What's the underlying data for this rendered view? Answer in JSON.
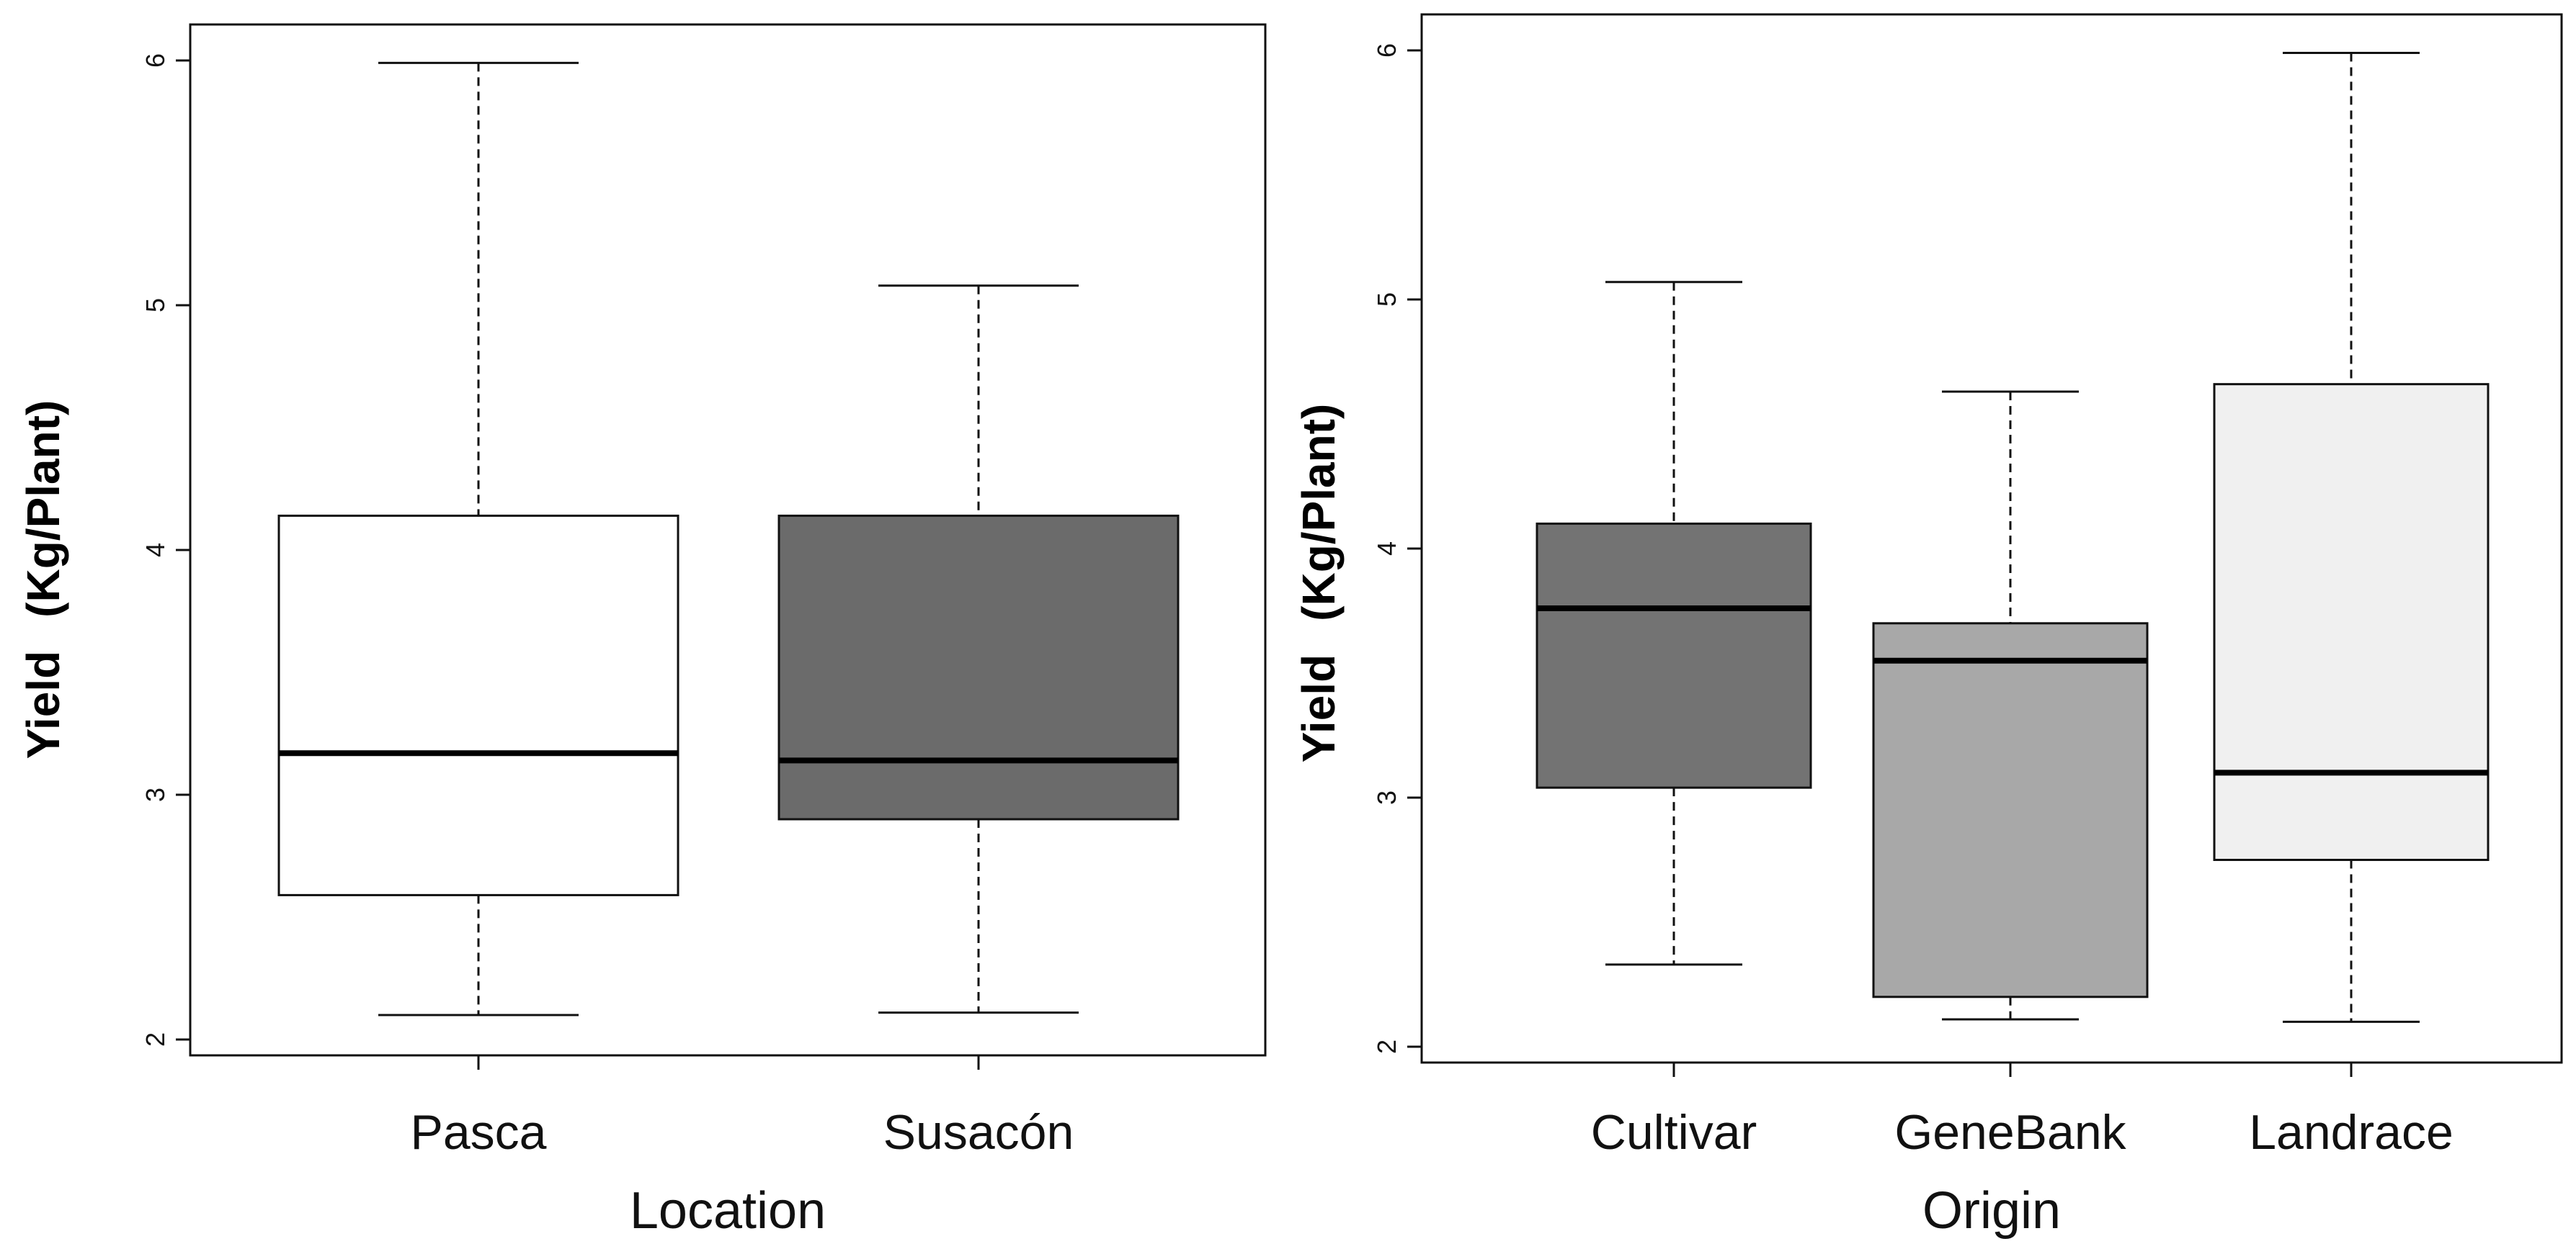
{
  "chart_data": [
    {
      "type": "box",
      "title": "",
      "xlabel": "Location",
      "ylabel": {
        "word": "Yield",
        "unit": "(Kg/Plant)"
      },
      "ylim": [
        2,
        6
      ],
      "yticks": [
        2,
        3,
        4,
        5,
        6
      ],
      "yticklabels": [
        "2",
        "3",
        "4",
        "5",
        "6"
      ],
      "grid": false,
      "categories": [
        "Pasca",
        "Susacón"
      ],
      "boxes": [
        {
          "name": "Pasca",
          "whisker_low": 2.1,
          "q1": 2.59,
          "median": 3.17,
          "q3": 4.14,
          "whisker_high": 5.99,
          "fill": "#ffffff"
        },
        {
          "name": "Susacón",
          "whisker_low": 2.11,
          "q1": 2.9,
          "median": 3.14,
          "q3": 4.14,
          "whisker_high": 5.08,
          "fill": "#6b6b6b"
        }
      ]
    },
    {
      "type": "box",
      "title": "",
      "xlabel": "Origin",
      "ylabel": {
        "word": "Yield",
        "unit": "(Kg/Plant)"
      },
      "ylim": [
        2,
        6
      ],
      "yticks": [
        2,
        3,
        4,
        5,
        6
      ],
      "yticklabels": [
        "2",
        "3",
        "4",
        "5",
        "6"
      ],
      "grid": false,
      "categories": [
        "Cultivar",
        "GeneBank",
        "Landrace"
      ],
      "boxes": [
        {
          "name": "Cultivar",
          "whisker_low": 2.33,
          "q1": 3.04,
          "median": 3.76,
          "q3": 4.1,
          "whisker_high": 5.07,
          "fill": "#737373"
        },
        {
          "name": "GeneBank",
          "whisker_low": 2.11,
          "q1": 2.2,
          "median": 3.55,
          "q3": 3.7,
          "whisker_high": 4.63,
          "fill": "#a8a8a8"
        },
        {
          "name": "Landrace",
          "whisker_low": 2.1,
          "q1": 2.75,
          "median": 3.1,
          "q3": 4.66,
          "whisker_high": 5.99,
          "fill": "#f0f0f0"
        }
      ]
    }
  ]
}
